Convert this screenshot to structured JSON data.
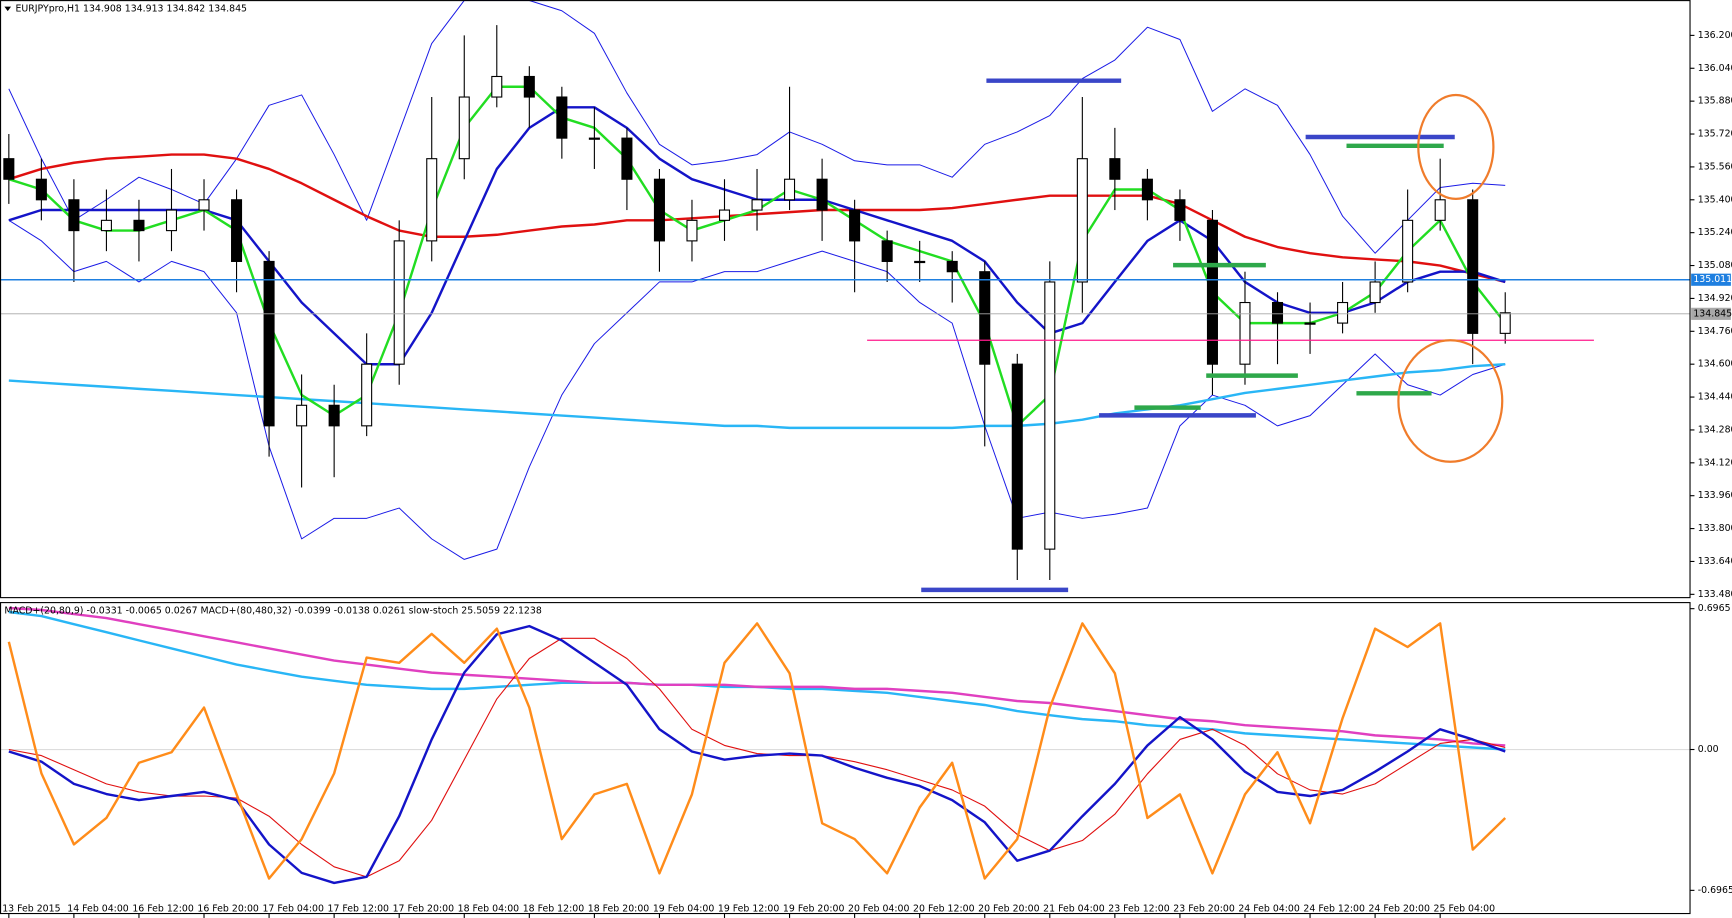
{
  "chart_data": [
    {
      "type": "candlestick",
      "title": "EURJPYpro,H1  134.908 134.913 134.842 134.845",
      "categories": [
        "13 Feb 2015",
        null,
        "14 Feb 04:00",
        null,
        "16 Feb 12:00",
        null,
        "16 Feb 20:00",
        null,
        "17 Feb 04:00",
        null,
        "17 Feb 12:00",
        null,
        "17 Feb 20:00",
        null,
        "18 Feb 04:00",
        null,
        "18 Feb 12:00",
        null,
        "18 Feb 20:00",
        null,
        "19 Feb 04:00",
        null,
        "19 Feb 12:00",
        null,
        "19 Feb 20:00",
        null,
        "20 Feb 04:00",
        null,
        "20 Feb 12:00",
        null,
        "20 Feb 20:00",
        null,
        "21 Feb 04:00",
        null,
        "23 Feb 12:00",
        null,
        "23 Feb 20:00",
        null,
        "24 Feb 04:00",
        null,
        "24 Feb 12:00",
        null,
        "24 Feb 20:00",
        null,
        "25 Feb 04:00",
        null,
        null
      ],
      "open": [
        135.6,
        135.5,
        135.4,
        135.25,
        135.3,
        135.25,
        135.35,
        135.4,
        135.1,
        134.3,
        134.4,
        134.3,
        134.6,
        135.2,
        135.6,
        135.9,
        136.0,
        135.9,
        135.7,
        135.7,
        135.5,
        135.2,
        135.3,
        135.35,
        135.4,
        135.5,
        135.35,
        135.2,
        135.1,
        135.1,
        135.05,
        134.6,
        133.7,
        135.0,
        135.6,
        135.5,
        135.4,
        135.3,
        134.6,
        134.9,
        134.8,
        134.8,
        134.9,
        135.0,
        135.3,
        135.4,
        134.75
      ],
      "high": [
        135.72,
        135.6,
        135.5,
        135.45,
        135.4,
        135.55,
        135.5,
        135.45,
        135.15,
        134.55,
        134.5,
        134.75,
        135.3,
        135.9,
        136.2,
        136.25,
        136.05,
        135.95,
        135.85,
        135.75,
        135.55,
        135.4,
        135.5,
        135.55,
        135.95,
        135.6,
        135.4,
        135.25,
        135.2,
        135.15,
        135.1,
        134.65,
        135.1,
        135.9,
        135.75,
        135.55,
        135.45,
        135.35,
        135.05,
        134.95,
        134.9,
        135.0,
        135.1,
        135.45,
        135.6,
        135.45,
        134.95
      ],
      "low": [
        135.38,
        135.3,
        135.0,
        135.15,
        135.1,
        135.15,
        135.25,
        134.95,
        134.15,
        134.0,
        134.05,
        134.25,
        134.5,
        135.1,
        135.5,
        135.85,
        135.75,
        135.6,
        135.55,
        135.35,
        135.05,
        135.1,
        135.2,
        135.25,
        135.35,
        135.2,
        134.95,
        135.0,
        135.0,
        134.9,
        134.2,
        133.55,
        133.55,
        134.85,
        135.35,
        135.3,
        135.2,
        134.45,
        134.5,
        134.6,
        134.65,
        134.75,
        134.85,
        134.95,
        135.25,
        134.6,
        134.7
      ],
      "close": [
        135.5,
        135.4,
        135.25,
        135.3,
        135.25,
        135.35,
        135.4,
        135.1,
        134.3,
        134.4,
        134.3,
        134.6,
        135.2,
        135.6,
        135.9,
        136.0,
        135.9,
        135.7,
        135.7,
        135.5,
        135.2,
        135.3,
        135.35,
        135.4,
        135.5,
        135.35,
        135.2,
        135.1,
        135.1,
        135.05,
        134.6,
        133.7,
        135.0,
        135.6,
        135.5,
        135.4,
        135.3,
        134.6,
        134.9,
        134.8,
        134.8,
        134.9,
        135.0,
        135.3,
        135.4,
        134.75,
        134.85
      ],
      "ylim": [
        133.464,
        136.372
      ],
      "yticks": [
        {
          "value": 136.2,
          "label": "136.200"
        },
        {
          "value": 136.04,
          "label": "136.040"
        },
        {
          "value": 135.88,
          "label": "135.880"
        },
        {
          "value": 135.72,
          "label": "135.720"
        },
        {
          "value": 135.56,
          "label": "135.560"
        },
        {
          "value": 135.4,
          "label": "135.400"
        },
        {
          "value": 135.24,
          "label": "135.240"
        },
        {
          "value": 135.08,
          "label": "135.080"
        },
        {
          "value": 134.92,
          "label": "134.920"
        },
        {
          "value": 134.76,
          "label": "134.760"
        },
        {
          "value": 134.6,
          "label": "134.600"
        },
        {
          "value": 134.44,
          "label": "134.440"
        },
        {
          "value": 134.28,
          "label": "134.280"
        },
        {
          "value": 134.12,
          "label": "134.120"
        },
        {
          "value": 133.96,
          "label": "133.960"
        },
        {
          "value": 133.8,
          "label": "133.800"
        },
        {
          "value": 133.64,
          "label": "133.640"
        },
        {
          "value": 133.48,
          "label": "133.480"
        }
      ],
      "hlines": [
        {
          "value": 135.011,
          "color": "#1e7fe0"
        },
        {
          "value": 134.845,
          "color": "#a8a8a8"
        }
      ],
      "series": [
        {
          "color": "#1a1ae6",
          "values": [
            135.94,
            135.6,
            135.3,
            135.4,
            135.51,
            135.45,
            135.38,
            135.6,
            135.86,
            135.91,
            135.62,
            135.3,
            135.73,
            136.16,
            136.37,
            136.37,
            136.37,
            136.32,
            136.21,
            135.92,
            135.67,
            135.57,
            135.59,
            135.62,
            135.73,
            135.67,
            135.59,
            135.57,
            135.57,
            135.51,
            135.67,
            135.73,
            135.81,
            135.99,
            136.08,
            136.24,
            136.18,
            135.83,
            135.94,
            135.86,
            135.62,
            135.32,
            135.14,
            135.3,
            135.46,
            135.48,
            135.47
          ]
        },
        {
          "color": "#1a1ae6",
          "values": [
            135.3,
            135.2,
            135.05,
            135.1,
            135.0,
            135.1,
            135.05,
            134.85,
            134.2,
            133.75,
            133.85,
            133.85,
            133.9,
            133.75,
            133.65,
            133.7,
            134.1,
            134.45,
            134.7,
            134.85,
            135.0,
            135.0,
            135.05,
            135.05,
            135.1,
            135.15,
            135.1,
            135.05,
            134.9,
            134.8,
            134.3,
            133.85,
            133.88,
            133.85,
            133.87,
            133.9,
            134.3,
            134.45,
            134.4,
            134.3,
            134.35,
            134.5,
            134.65,
            134.5,
            134.45,
            134.55,
            134.6
          ]
        },
        {
          "color": "#29b6f6",
          "values": [
            134.52,
            134.51,
            134.5,
            134.49,
            134.48,
            134.47,
            134.46,
            134.45,
            134.44,
            134.43,
            134.42,
            134.41,
            134.4,
            134.39,
            134.38,
            134.37,
            134.36,
            134.35,
            134.34,
            134.33,
            134.32,
            134.31,
            134.3,
            134.3,
            134.29,
            134.29,
            134.29,
            134.29,
            134.29,
            134.29,
            134.3,
            134.3,
            134.31,
            134.33,
            134.36,
            134.38,
            134.4,
            134.43,
            134.46,
            134.48,
            134.5,
            134.52,
            134.54,
            134.56,
            134.57,
            134.59,
            134.6
          ]
        },
        {
          "color": "#e01010",
          "values": [
            135.5,
            135.55,
            135.58,
            135.6,
            135.61,
            135.62,
            135.62,
            135.6,
            135.55,
            135.48,
            135.4,
            135.32,
            135.25,
            135.22,
            135.22,
            135.23,
            135.25,
            135.27,
            135.28,
            135.3,
            135.3,
            135.31,
            135.32,
            135.33,
            135.34,
            135.35,
            135.35,
            135.35,
            135.35,
            135.36,
            135.38,
            135.4,
            135.42,
            135.42,
            135.42,
            135.42,
            135.38,
            135.3,
            135.22,
            135.17,
            135.14,
            135.12,
            135.11,
            135.1,
            135.08,
            135.04,
            135.0
          ]
        },
        {
          "color": "#1414c8",
          "values": [
            135.3,
            135.35,
            135.35,
            135.35,
            135.35,
            135.35,
            135.35,
            135.3,
            135.1,
            134.9,
            134.75,
            134.6,
            134.6,
            134.85,
            135.2,
            135.55,
            135.75,
            135.85,
            135.85,
            135.75,
            135.6,
            135.5,
            135.45,
            135.4,
            135.4,
            135.4,
            135.35,
            135.3,
            135.25,
            135.2,
            135.1,
            134.9,
            134.75,
            134.8,
            135.0,
            135.2,
            135.3,
            135.2,
            135.0,
            134.9,
            134.85,
            134.85,
            134.9,
            135.0,
            135.05,
            135.05,
            135.0
          ]
        },
        {
          "color": "#22dd22",
          "values": [
            135.5,
            135.45,
            135.3,
            135.25,
            135.25,
            135.3,
            135.35,
            135.25,
            134.8,
            134.45,
            134.35,
            134.45,
            134.85,
            135.35,
            135.75,
            135.95,
            135.95,
            135.8,
            135.75,
            135.6,
            135.35,
            135.25,
            135.3,
            135.35,
            135.45,
            135.4,
            135.3,
            135.2,
            135.15,
            135.1,
            134.8,
            134.3,
            134.45,
            135.2,
            135.45,
            135.45,
            135.35,
            134.95,
            134.8,
            134.8,
            134.8,
            134.85,
            134.95,
            135.15,
            135.3,
            135.0,
            134.8
          ]
        }
      ]
    },
    {
      "type": "line",
      "title": "MACD+(20,80,9) -0.0331 -0.0065 0.0267  MACD+(80,480,32) -0.0399 -0.0138 0.0261  slow-stoch 25.5059 22.1238",
      "ylim": [
        -0.8112,
        0.7293
      ],
      "yticks": [
        0.6965,
        {
          "value": 0,
          "label": "0.00"
        },
        -0.6965
      ],
      "y2lim": [
        -11.3,
        107.1
      ],
      "series": [
        {
          "color": "#29b6f6",
          "values": [
            0.68,
            0.66,
            0.62,
            0.58,
            0.54,
            0.5,
            0.46,
            0.42,
            0.39,
            0.36,
            0.34,
            0.32,
            0.31,
            0.3,
            0.3,
            0.31,
            0.32,
            0.33,
            0.33,
            0.33,
            0.32,
            0.32,
            0.31,
            0.31,
            0.3,
            0.3,
            0.29,
            0.28,
            0.26,
            0.24,
            0.22,
            0.19,
            0.17,
            0.15,
            0.14,
            0.12,
            0.11,
            0.1,
            0.08,
            0.07,
            0.06,
            0.05,
            0.04,
            0.03,
            0.02,
            0.01,
            0.0
          ]
        },
        {
          "color": "#e040c0",
          "values": [
            0.7,
            0.69,
            0.67,
            0.65,
            0.62,
            0.59,
            0.56,
            0.53,
            0.5,
            0.47,
            0.44,
            0.42,
            0.4,
            0.38,
            0.37,
            0.36,
            0.35,
            0.34,
            0.33,
            0.33,
            0.32,
            0.32,
            0.32,
            0.31,
            0.31,
            0.31,
            0.3,
            0.3,
            0.29,
            0.28,
            0.26,
            0.24,
            0.23,
            0.21,
            0.19,
            0.17,
            0.15,
            0.14,
            0.12,
            0.11,
            0.1,
            0.09,
            0.07,
            0.06,
            0.05,
            0.03,
            0.02
          ]
        },
        {
          "color": "#e01010",
          "values": [
            0,
            -0.03,
            -0.1,
            -0.17,
            -0.21,
            -0.23,
            -0.23,
            -0.24,
            -0.33,
            -0.47,
            -0.58,
            -0.63,
            -0.55,
            -0.35,
            -0.05,
            0.25,
            0.45,
            0.55,
            0.55,
            0.45,
            0.3,
            0.1,
            0.02,
            -0.02,
            -0.03,
            -0.03,
            -0.06,
            -0.1,
            -0.15,
            -0.2,
            -0.28,
            -0.42,
            -0.5,
            -0.45,
            -0.32,
            -0.12,
            0.05,
            0.1,
            0.02,
            -0.12,
            -0.2,
            -0.22,
            -0.17,
            -0.07,
            0.03,
            0.05,
            0.01
          ]
        },
        {
          "color": "#1414c8",
          "values": [
            -0.01,
            -0.06,
            -0.17,
            -0.22,
            -0.25,
            -0.23,
            -0.21,
            -0.25,
            -0.47,
            -0.61,
            -0.66,
            -0.63,
            -0.33,
            0.05,
            0.38,
            0.57,
            0.61,
            0.54,
            0.43,
            0.32,
            0.1,
            -0.01,
            -0.05,
            -0.03,
            -0.02,
            -0.03,
            -0.09,
            -0.14,
            -0.18,
            -0.25,
            -0.36,
            -0.55,
            -0.5,
            -0.33,
            -0.17,
            0.02,
            0.16,
            0.05,
            -0.11,
            -0.21,
            -0.23,
            -0.2,
            -0.11,
            -0.01,
            0.1,
            0.05,
            -0.01
          ]
        },
        {
          "color": "#ff8c1a",
          "axis": "y2",
          "values": [
            92,
            42,
            15,
            25,
            46,
            50,
            67,
            34,
            2,
            17,
            42,
            86,
            84,
            95,
            84,
            97,
            67,
            17,
            34,
            38,
            4,
            34,
            84,
            99,
            80,
            23,
            17,
            4,
            29,
            46,
            2,
            17,
            67,
            99,
            80,
            25,
            34,
            4,
            34,
            50,
            23,
            63,
            97,
            90,
            99,
            13,
            25
          ]
        }
      ]
    }
  ]
}
